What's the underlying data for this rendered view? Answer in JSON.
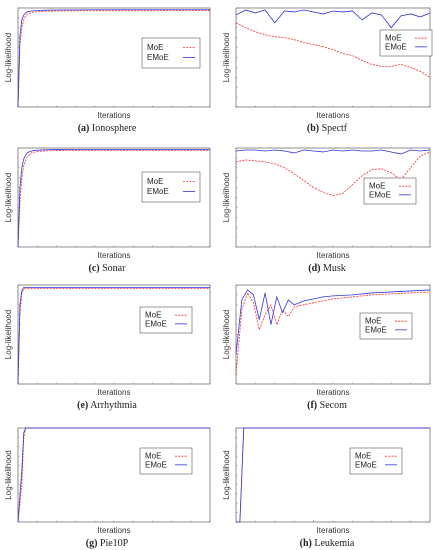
{
  "colors": {
    "moe": "#ff2a2a",
    "emoe": "#3333dd",
    "axis": "#444444",
    "legend_border": "#555555"
  },
  "chart_data": [
    {
      "type": "line",
      "panel_label": "(a)",
      "panel_name": "Ionosphere",
      "xlabel": "Iterations",
      "ylabel": "Log-likelihood",
      "legend_position": "right-center",
      "xlim": [
        0,
        100
      ],
      "ylim": [
        0,
        100
      ],
      "series": [
        {
          "name": "MoE",
          "x": [
            0,
            1,
            2,
            3,
            4,
            5,
            7,
            10,
            15,
            20,
            30,
            50,
            70,
            100
          ],
          "y": [
            0,
            62,
            80,
            88,
            92,
            94,
            95.5,
            96.2,
            96.7,
            97,
            97.2,
            97.3,
            97.3,
            97.4
          ]
        },
        {
          "name": "EMoE",
          "x": [
            0,
            1,
            2,
            3,
            4,
            5,
            7,
            10,
            15,
            20,
            30,
            50,
            70,
            100
          ],
          "y": [
            0,
            72,
            88,
            93,
            95,
            96.3,
            97,
            97.5,
            97.8,
            98,
            98.1,
            98.2,
            98.2,
            98.2
          ]
        }
      ]
    },
    {
      "type": "line",
      "panel_label": "(b)",
      "panel_name": "Spectf",
      "xlabel": "Iterations",
      "ylabel": "Log-likelihood",
      "legend_position": "top-right",
      "xlim": [
        0,
        100
      ],
      "ylim": [
        0,
        100
      ],
      "series": [
        {
          "name": "MoE",
          "x": [
            0,
            5,
            10,
            15,
            20,
            25,
            30,
            35,
            40,
            45,
            50,
            55,
            60,
            65,
            70,
            75,
            80,
            85,
            90,
            95,
            100
          ],
          "y": [
            85,
            80,
            76,
            73,
            71,
            70,
            68,
            65,
            63,
            61,
            58,
            54,
            52,
            47,
            43,
            41,
            41,
            43,
            40,
            36,
            30
          ]
        },
        {
          "name": "EMoE",
          "x": [
            0,
            5,
            10,
            15,
            20,
            25,
            30,
            35,
            40,
            45,
            50,
            55,
            60,
            65,
            70,
            75,
            80,
            85,
            90,
            95,
            100
          ],
          "y": [
            93,
            98,
            95,
            98,
            85,
            97,
            96,
            98,
            96,
            94,
            97,
            96,
            97,
            88,
            95,
            93,
            80,
            92,
            94,
            91,
            95
          ]
        }
      ]
    },
    {
      "type": "line",
      "panel_label": "(c)",
      "panel_name": "Sonar",
      "xlabel": "Iterations",
      "ylabel": "Log-likelihood",
      "legend_position": "right-center",
      "xlim": [
        0,
        100
      ],
      "ylim": [
        0,
        100
      ],
      "series": [
        {
          "name": "MoE",
          "x": [
            0,
            1,
            2,
            3,
            4,
            5,
            7,
            10,
            15,
            20,
            30,
            50,
            70,
            100
          ],
          "y": [
            0,
            45,
            70,
            82,
            88,
            92,
            95,
            96.5,
            97.2,
            97.4,
            97.5,
            97.5,
            97.5,
            97.5
          ]
        },
        {
          "name": "EMoE",
          "x": [
            0,
            1,
            2,
            3,
            4,
            5,
            7,
            10,
            15,
            20,
            30,
            50,
            70,
            100
          ],
          "y": [
            0,
            60,
            80,
            89,
            93,
            95.5,
            97,
            97.8,
            98.2,
            98.4,
            98.5,
            98.5,
            98.5,
            98.5
          ]
        }
      ]
    },
    {
      "type": "line",
      "panel_label": "(d)",
      "panel_name": "Musk",
      "xlabel": "Iterations",
      "ylabel": "Log-likelihood",
      "legend_position": "right-center",
      "xlim": [
        0,
        100
      ],
      "ylim": [
        0,
        100
      ],
      "series": [
        {
          "name": "MoE",
          "x": [
            0,
            5,
            10,
            15,
            20,
            25,
            30,
            35,
            40,
            45,
            50,
            55,
            60,
            65,
            70,
            75,
            80,
            85,
            90,
            95,
            100
          ],
          "y": [
            86,
            88,
            87,
            86,
            84,
            80,
            74,
            67,
            60,
            55,
            52,
            54,
            63,
            72,
            78,
            79,
            75,
            68,
            80,
            92,
            96
          ]
        },
        {
          "name": "EMoE",
          "x": [
            0,
            5,
            10,
            15,
            20,
            25,
            30,
            35,
            40,
            45,
            50,
            55,
            60,
            65,
            70,
            75,
            80,
            85,
            90,
            95,
            100
          ],
          "y": [
            97,
            98,
            98,
            97,
            98,
            97,
            95,
            98,
            97,
            96,
            98,
            97,
            98,
            97,
            97,
            98,
            96,
            94,
            98,
            97,
            98
          ]
        }
      ]
    },
    {
      "type": "line",
      "panel_label": "(e)",
      "panel_name": "Arrhythmia",
      "xlabel": "Iterations",
      "ylabel": "Log-likelihood",
      "legend_position": "right-center",
      "xlim": [
        0,
        100
      ],
      "ylim": [
        0,
        100
      ],
      "series": [
        {
          "name": "MoE",
          "x": [
            0,
            1,
            2,
            3,
            5,
            10,
            30,
            60,
            100
          ],
          "y": [
            0,
            70,
            92,
            96,
            96.5,
            96.5,
            96.5,
            96.5,
            96.5
          ]
        },
        {
          "name": "EMoE",
          "x": [
            0,
            1,
            2,
            3,
            5,
            10,
            30,
            60,
            100
          ],
          "y": [
            0,
            80,
            94,
            97.5,
            97.5,
            97.5,
            97.5,
            97.5,
            97.5
          ]
        }
      ]
    },
    {
      "type": "line",
      "panel_label": "(f)",
      "panel_name": "Secom",
      "xlabel": "Iterations",
      "ylabel": "Log-likelihood",
      "legend_position": "right-center",
      "xlim": [
        0,
        100
      ],
      "ylim": [
        0,
        100
      ],
      "series": [
        {
          "name": "MoE",
          "x": [
            0,
            3,
            6,
            9,
            12,
            15,
            18,
            21,
            24,
            27,
            30,
            35,
            40,
            45,
            50,
            60,
            70,
            80,
            90,
            100
          ],
          "y": [
            10,
            75,
            92,
            82,
            55,
            70,
            80,
            60,
            75,
            68,
            78,
            80,
            82,
            84,
            86,
            88,
            90,
            91,
            92,
            93
          ]
        },
        {
          "name": "EMoE",
          "x": [
            0,
            3,
            6,
            9,
            12,
            15,
            18,
            21,
            24,
            27,
            30,
            35,
            40,
            45,
            50,
            60,
            70,
            80,
            90,
            100
          ],
          "y": [
            30,
            85,
            95,
            90,
            65,
            92,
            60,
            88,
            72,
            85,
            80,
            84,
            86,
            88,
            89,
            90,
            92,
            93,
            94,
            95
          ]
        }
      ]
    },
    {
      "type": "line",
      "panel_label": "(g)",
      "panel_name": "Pie10P",
      "xlabel": "Iterations",
      "ylabel": "Log-likelihood",
      "legend_position": "right-center",
      "xlim": [
        0,
        100
      ],
      "ylim": [
        0,
        100
      ],
      "series": [
        {
          "name": "MoE",
          "x": [
            0,
            2,
            3,
            4,
            6,
            100
          ],
          "y": [
            0,
            40,
            90,
            100,
            100,
            100
          ]
        },
        {
          "name": "EMoE",
          "x": [
            0,
            2,
            3,
            4,
            6,
            100
          ],
          "y": [
            0,
            55,
            95,
            100,
            100,
            100
          ]
        }
      ]
    },
    {
      "type": "line",
      "panel_label": "(h)",
      "panel_name": "Leukemia",
      "xlabel": "Iterations",
      "ylabel": "Log-likelihood",
      "legend_position": "right-center",
      "xlim": [
        0,
        100
      ],
      "ylim": [
        0,
        100
      ],
      "series": [
        {
          "name": "MoE",
          "x": [
            0,
            2,
            4,
            5,
            7,
            100
          ],
          "y": [
            0,
            0,
            100,
            100,
            100,
            100
          ]
        },
        {
          "name": "EMoE",
          "x": [
            0,
            2,
            4,
            5,
            7,
            100
          ],
          "y": [
            0,
            0,
            100,
            100,
            100,
            100
          ]
        }
      ]
    }
  ]
}
